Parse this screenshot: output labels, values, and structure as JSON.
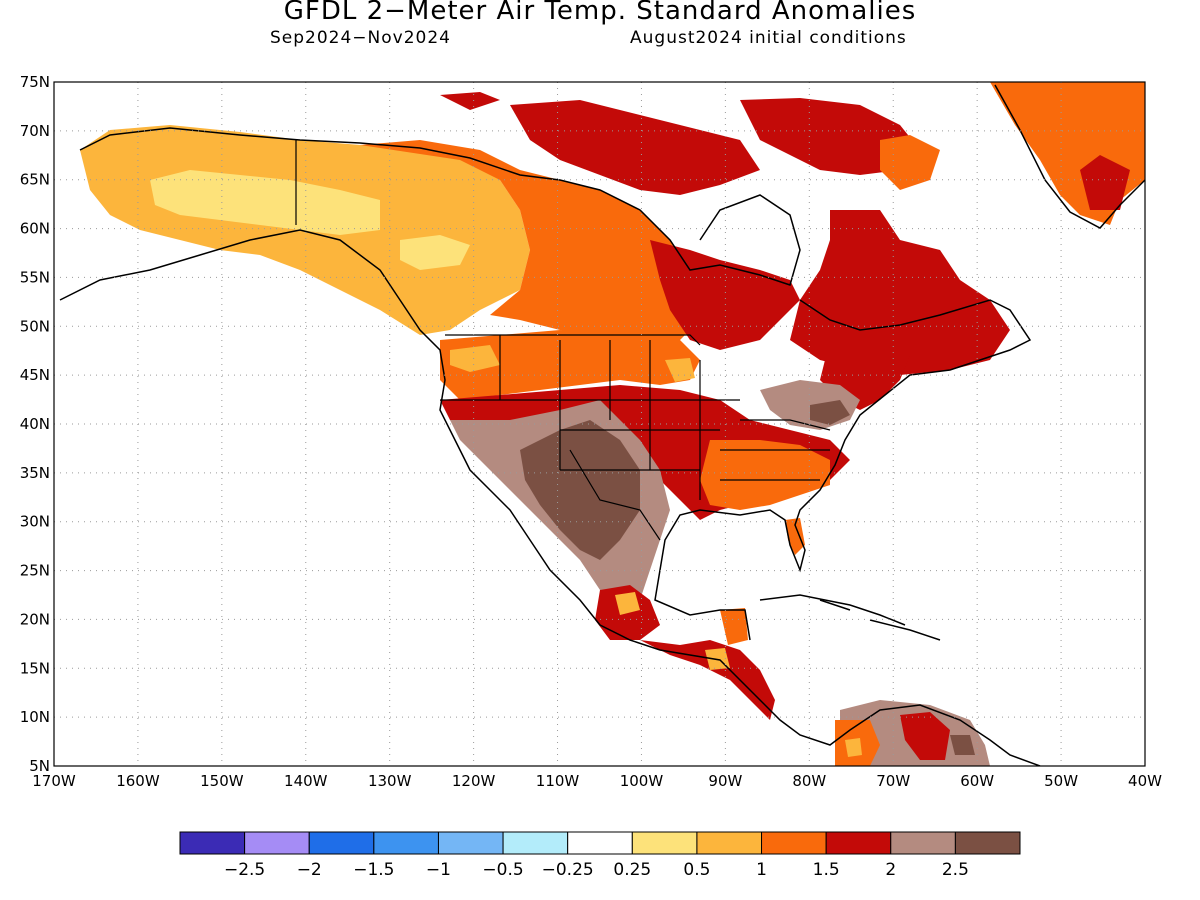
{
  "header": {
    "title": "GFDL 2−Meter Air Temp. Standard Anomalies",
    "period": "Sep2024−Nov2024",
    "initial_conditions": "August2024 initial conditions"
  },
  "map": {
    "lat_labels": [
      "75N",
      "70N",
      "65N",
      "60N",
      "55N",
      "50N",
      "45N",
      "40N",
      "35N",
      "30N",
      "25N",
      "20N",
      "15N",
      "10N",
      "5N"
    ],
    "lon_labels": [
      "170W",
      "160W",
      "150W",
      "140W",
      "130W",
      "120W",
      "110W",
      "100W",
      "90W",
      "80W",
      "70W",
      "60W",
      "50W",
      "40W"
    ],
    "lat_range": [
      5,
      75
    ],
    "lon_range": [
      -170,
      -40
    ]
  },
  "colorbar": {
    "colors": [
      "#3b2bb5",
      "#a58cf5",
      "#1f6ee8",
      "#3d93f0",
      "#74b6f5",
      "#b3ecfa",
      "#ffffff",
      "#fde27a",
      "#fcb53c",
      "#f96a0c",
      "#c30a08",
      "#b48b80",
      "#7b5043"
    ],
    "tick_labels": [
      "−2.5",
      "−2",
      "−1.5",
      "−1",
      "−0.5",
      "−0.25",
      "0.25",
      "0.5",
      "1",
      "1.5",
      "2",
      "2.5"
    ]
  }
}
